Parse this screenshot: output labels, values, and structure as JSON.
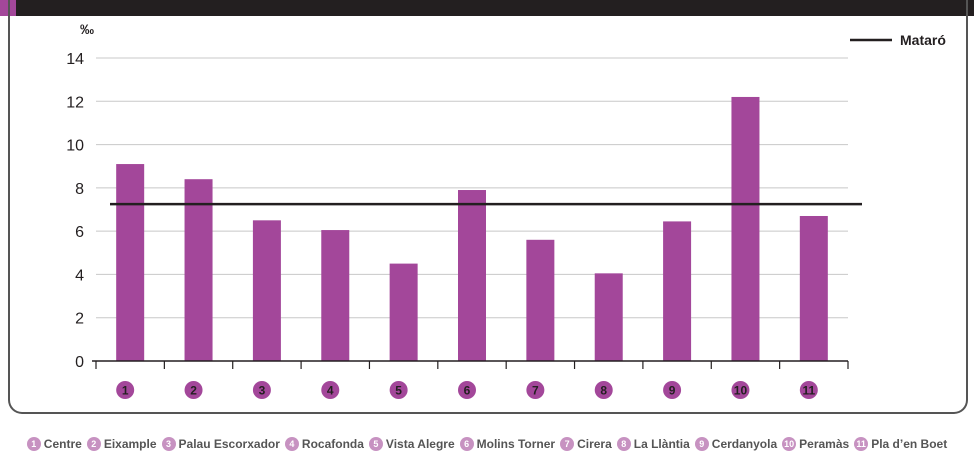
{
  "chart_data": {
    "type": "bar",
    "ylabel": "‰",
    "ylim": [
      0,
      14
    ],
    "yticks": [
      "0",
      "2",
      "4",
      "6",
      "8",
      "10",
      "12",
      "14"
    ],
    "grid": true,
    "categories": [
      "1",
      "2",
      "3",
      "4",
      "5",
      "6",
      "7",
      "8",
      "9",
      "10",
      "11"
    ],
    "values": [
      9.1,
      8.4,
      6.5,
      6.05,
      4.5,
      7.9,
      5.6,
      4.05,
      6.45,
      12.2,
      6.7
    ],
    "reference_line": {
      "name": "Mataró",
      "value": 7.25
    },
    "legend_position": "top-right",
    "category_names": [
      "Centre",
      "Eixample",
      "Palau Escorxador",
      "Rocafonda",
      "Vista Alegre",
      "Molins Torner",
      "Cirera",
      "La Llàntia",
      "Cerdanyola",
      "Peramàs",
      "Pla d’en Boet"
    ]
  },
  "colors": {
    "bar": "#a3479a",
    "reference_line": "#231f20",
    "badge": "#a3479a",
    "legend_badge": "#c792c1",
    "grid": "#c8c8c8"
  }
}
